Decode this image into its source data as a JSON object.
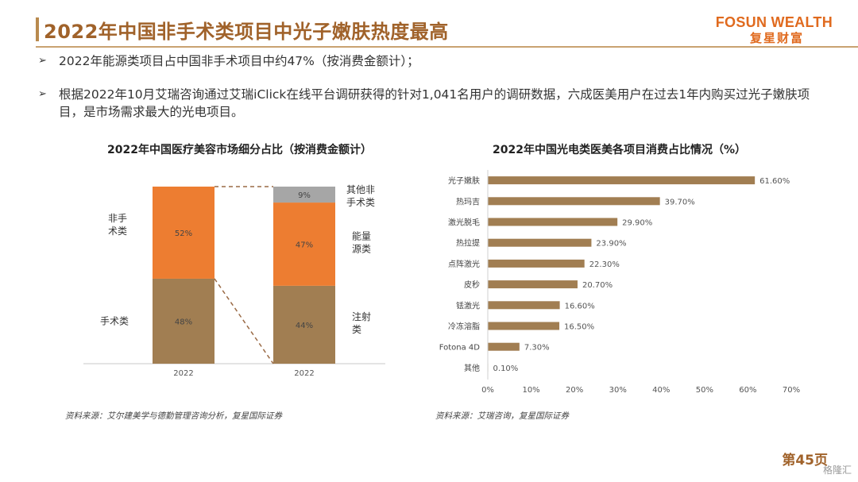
{
  "header": {
    "title": "2022年中国非手术类项目中光子嫩肤热度最高",
    "brand_en": "FOSUN WEALTH",
    "brand_cn": "复星财富"
  },
  "bullets": [
    "2022年能源类项目占中国非手术项目中约47%（按消费金额计）；",
    "根据2022年10月艾瑞咨询通过艾瑞iClick在线平台调研获得的针对1,041名用户的调研数据，六成医美用户在过去1年内购买过光子嫩肤项目，是市场需求最大的光电项目。"
  ],
  "bullet_arrow": "➢",
  "chart_data": [
    {
      "type": "bar",
      "title": "2022年中国医疗美容市场细分占比（按消费金额计）",
      "categories": [
        "2022",
        "2022"
      ],
      "series": [
        {
          "name": "手术类",
          "values": [
            48,
            null
          ],
          "label": "48%"
        },
        {
          "name": "非手术类",
          "values": [
            52,
            null
          ],
          "label": "52%"
        },
        {
          "name": "注射类",
          "values": [
            null,
            44
          ],
          "label": "44%"
        },
        {
          "name": "能量源类",
          "values": [
            null,
            47
          ],
          "label": "47%"
        },
        {
          "name": "其他非手术类",
          "values": [
            null,
            9
          ],
          "label": "9%"
        }
      ],
      "left_labels": {
        "upper": "非手\n术类",
        "lower": "手术类"
      },
      "right_labels": {
        "top": "其他非\n手术类",
        "mid": "能量\n源类",
        "bottom": "注射\n类"
      },
      "colors": {
        "brown": "#a17e52",
        "orange": "#ed7d31",
        "gray": "#a6a6a6"
      },
      "ylim": [
        0,
        100
      ]
    },
    {
      "type": "bar",
      "orientation": "horizontal",
      "title": "2022年中国光电类医美各项目消费占比情况（%）",
      "categories": [
        "光子嫩肤",
        "热玛吉",
        "激光脱毛",
        "热拉提",
        "点阵激光",
        "皮秒",
        "铥激光",
        "冷冻溶脂",
        "Fotona 4D",
        "其他"
      ],
      "values": [
        61.6,
        39.7,
        29.9,
        23.9,
        22.3,
        20.7,
        16.6,
        16.5,
        7.3,
        0.1
      ],
      "value_labels": [
        "61.60%",
        "39.70%",
        "29.90%",
        "23.90%",
        "22.30%",
        "20.70%",
        "16.60%",
        "16.50%",
        "7.30%",
        "0.10%"
      ],
      "xticks": [
        "0%",
        "10%",
        "20%",
        "30%",
        "40%",
        "50%",
        "60%",
        "70%"
      ],
      "xlim": [
        0,
        70
      ],
      "color": "#a17e52"
    }
  ],
  "sources": {
    "left": "资料来源：艾尔建美学与德勤管理咨询分析，复星国际证券",
    "right": "资料来源：艾瑞咨询，复星国际证券"
  },
  "footer": {
    "page": "第45页",
    "watermark": "格隆汇"
  }
}
